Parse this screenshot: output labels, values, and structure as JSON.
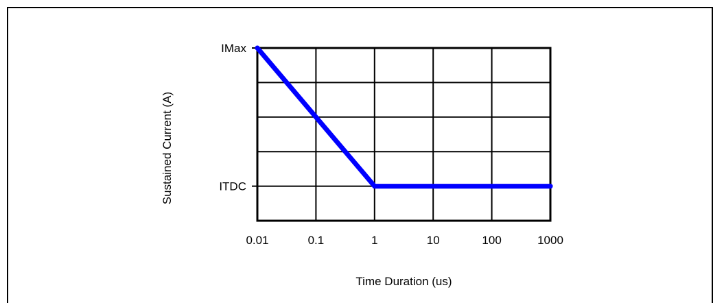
{
  "chart_data": {
    "type": "line",
    "title": "",
    "xlabel": "Time Duration (us)",
    "ylabel": "Sustained Current (A)",
    "x_scale": "log",
    "x_ticks": [
      "0.01",
      "0.1",
      "1",
      "10",
      "100",
      "1000"
    ],
    "x_tick_values": [
      0.01,
      0.1,
      1,
      10,
      100,
      1000
    ],
    "y_ticks": [
      "IMax",
      "ITDC"
    ],
    "y_levels": 5,
    "grid": true,
    "series": [
      {
        "color": "#0000ff",
        "points": [
          {
            "x": 0.01,
            "y": "IMax"
          },
          {
            "x": 1,
            "y": "ITDC"
          },
          {
            "x": 1000,
            "y": "ITDC"
          }
        ]
      }
    ]
  }
}
